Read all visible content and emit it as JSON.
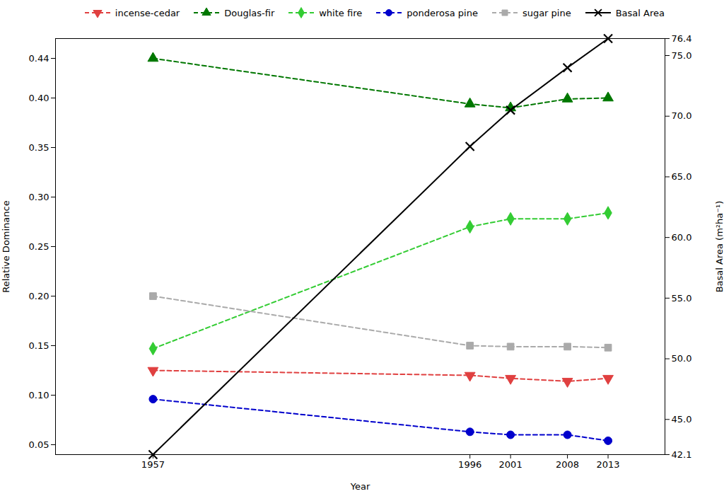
{
  "chart_data": {
    "type": "line",
    "x": [
      1957,
      1996,
      2001,
      2008,
      2013
    ],
    "xlabel": "Year",
    "ylabel": "Relative Dominance",
    "y2label": "Basal Area (m²ha⁻¹)",
    "xlim": [
      1945,
      2020
    ],
    "xticks": [
      1957,
      1996,
      2001,
      2008,
      2013
    ],
    "ylim": [
      0.04,
      0.46
    ],
    "yticks": [
      0.05,
      {
        "value": 0.1,
        "label": "0.10"
      },
      0.15,
      {
        "value": 0.2,
        "label": "0.20"
      },
      0.25,
      {
        "value": 0.3,
        "label": "0.30"
      },
      0.35,
      {
        "value": 0.4,
        "label": "0.40"
      },
      0.44
    ],
    "y2lim": [
      42.1,
      76.4
    ],
    "y2ticks": [
      42.1,
      {
        "value": 45,
        "label": "45.0"
      },
      {
        "value": 50,
        "label": "50.0"
      },
      {
        "value": 55,
        "label": "55.0"
      },
      {
        "value": 60,
        "label": "60.0"
      },
      {
        "value": 65,
        "label": "65.0"
      },
      {
        "value": 70,
        "label": "70.0"
      },
      {
        "value": 75,
        "label": "75.0"
      },
      76.4
    ],
    "grid": false,
    "legend": "upper right",
    "series": [
      {
        "name": "incense-cedar",
        "color": "#e04040",
        "marker": "triangle-down",
        "line_style": "dashed",
        "values": [
          0.125,
          0.12,
          0.117,
          0.114,
          0.117
        ]
      },
      {
        "name": "Douglas-fir",
        "color": "#007700",
        "marker": "triangle-up",
        "line_style": "dashed",
        "values": [
          0.44,
          0.394,
          0.39,
          0.399,
          0.4
        ]
      },
      {
        "name": "white fire",
        "color": "#33cc33",
        "marker": "diamond",
        "line_style": "dashed",
        "values": [
          0.147,
          0.27,
          0.278,
          0.278,
          0.284
        ]
      },
      {
        "name": "ponderosa pine",
        "color": "#0000cc",
        "marker": "circle",
        "line_style": "dashed",
        "values": [
          0.096,
          0.063,
          0.06,
          0.06,
          0.054
        ]
      },
      {
        "name": "sugar pine",
        "color": "#aaaaaa",
        "marker": "square",
        "line_style": "dashed",
        "values": [
          0.2,
          0.15,
          0.149,
          0.149,
          0.148
        ]
      },
      {
        "name": "Basal Area",
        "color": "#000000",
        "marker": "x",
        "line_style": "solid",
        "axis": "y2",
        "values": [
          42.1,
          67.5,
          70.5,
          74.0,
          76.4
        ]
      }
    ]
  }
}
